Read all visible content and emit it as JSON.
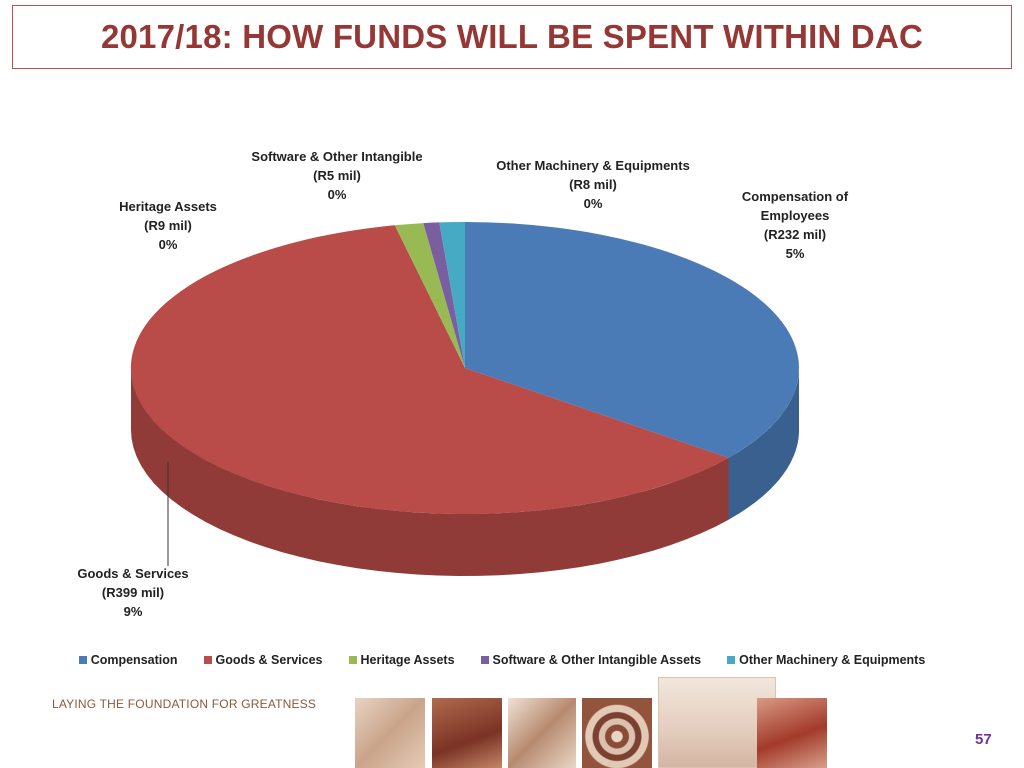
{
  "title": "2017/18:  HOW FUNDS WILL BE SPENT WITHIN DAC",
  "chart_data": {
    "type": "pie",
    "categories": [
      "Compensation",
      "Goods & Services",
      "Heritage Assets",
      "Software & Other Intangible Assets",
      "Other Machinery & Equipments"
    ],
    "values": [
      232,
      399,
      9,
      5,
      8
    ],
    "colors": [
      "#4a7bb7",
      "#b94b48",
      "#98b954",
      "#7a5fa0",
      "#46aac4"
    ],
    "data_labels": [
      {
        "name": "Compensation of Employees",
        "line1": "Compensation of",
        "line2": "Employees",
        "amount": "(R232 mil)",
        "pct": "5%"
      },
      {
        "name": "Goods & Services",
        "line1": "Goods & Services",
        "amount": "(R399 mil)",
        "pct": "9%"
      },
      {
        "name": "Heritage Assets",
        "line1": "Heritage Assets",
        "amount": "(R9 mil)",
        "pct": "0%"
      },
      {
        "name": "Software & Other Intangible",
        "line1": "Software & Other Intangible",
        "amount": "(R5 mil)",
        "pct": "0%"
      },
      {
        "name": "Other Machinery & Equipments",
        "line1": "Other Machinery & Equipments",
        "amount": "(R8 mil)",
        "pct": "0%"
      }
    ],
    "legend": [
      "Compensation",
      "Goods & Services",
      "Heritage Assets",
      "Software & Other Intangible Assets",
      "Other Machinery & Equipments"
    ],
    "legend_position": "bottom"
  },
  "footer": {
    "tagline": "LAYING THE FOUNDATION FOR GREATNESS",
    "page_number": "57"
  }
}
